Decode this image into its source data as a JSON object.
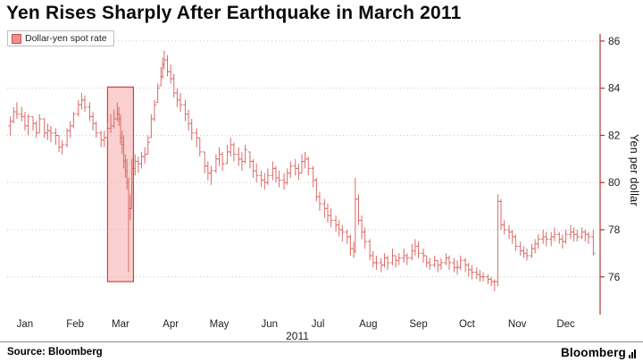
{
  "title": "Yen Rises Sharply After Earthquake in March 2011",
  "legend": {
    "label": "Dollar-yen spot rate"
  },
  "footer": {
    "source": "Source:  Bloomberg",
    "brand": "Bloomberg"
  },
  "colors": {
    "bar": "#d96a66",
    "axis": "#a93a2e",
    "grid": "#c9c9c9",
    "tick_label": "#222222",
    "month_label": "#222222",
    "highlight_fill": "rgba(243,150,150,0.45)",
    "highlight_border": "#d0423c"
  },
  "chart_data": {
    "type": "ohlc-bar",
    "title": "Yen Rises Sharply After Earthquake in March 2011",
    "series_name": "Dollar-yen spot rate",
    "xlabel": "2011",
    "ylabel": "Yen per dollar",
    "x_unit": "day-of-year-2011",
    "month_labels": [
      "Jan",
      "Feb",
      "Mar",
      "Apr",
      "May",
      "Jun",
      "Jul",
      "Aug",
      "Sep",
      "Oct",
      "Nov",
      "Dec"
    ],
    "y_ticks": [
      76,
      78,
      80,
      82,
      84,
      86
    ],
    "ylim": [
      74.4,
      86.3
    ],
    "grid": "dotted-horizontal",
    "legend_position": "top-left",
    "axis_position": "right",
    "highlight": {
      "day_start": 63,
      "day_end": 79,
      "y_top": 84.05,
      "y_bottom": 75.8
    },
    "points": [
      [
        3,
        82.8,
        82.0,
        82.6
      ],
      [
        5,
        83.2,
        82.5,
        83.0
      ],
      [
        7,
        83.4,
        82.7,
        82.9
      ],
      [
        10,
        83.2,
        82.6,
        82.8
      ],
      [
        12,
        83.0,
        82.2,
        82.4
      ],
      [
        14,
        82.9,
        82.0,
        82.8
      ],
      [
        17,
        82.8,
        82.2,
        82.5
      ],
      [
        19,
        82.6,
        81.9,
        82.1
      ],
      [
        21,
        82.9,
        82.1,
        82.7
      ],
      [
        24,
        82.7,
        81.9,
        82.1
      ],
      [
        26,
        82.5,
        81.8,
        82.2
      ],
      [
        28,
        82.4,
        81.7,
        82.1
      ],
      [
        31,
        82.3,
        81.6,
        82.0
      ],
      [
        33,
        82.0,
        81.3,
        81.5
      ],
      [
        35,
        81.8,
        81.2,
        81.6
      ],
      [
        38,
        82.3,
        81.5,
        82.2
      ],
      [
        40,
        82.6,
        81.9,
        82.4
      ],
      [
        42,
        83.0,
        82.3,
        82.9
      ],
      [
        45,
        83.5,
        82.8,
        83.3
      ],
      [
        47,
        83.8,
        83.1,
        83.5
      ],
      [
        49,
        83.7,
        83.0,
        83.2
      ],
      [
        52,
        83.4,
        82.6,
        82.8
      ],
      [
        54,
        83.0,
        82.2,
        82.5
      ],
      [
        56,
        82.6,
        81.9,
        82.1
      ],
      [
        59,
        82.2,
        81.5,
        81.8
      ],
      [
        61,
        82.2,
        81.5,
        81.9
      ],
      [
        63,
        82.5,
        81.8,
        82.3
      ],
      [
        65,
        82.9,
        82.1,
        82.4
      ],
      [
        67,
        83.1,
        82.3,
        82.7
      ],
      [
        69,
        83.4,
        82.6,
        82.9
      ],
      [
        70,
        83.2,
        82.4,
        82.7
      ],
      [
        71,
        82.9,
        81.6,
        81.9
      ],
      [
        72,
        82.2,
        81.2,
        81.6
      ],
      [
        73,
        82.0,
        80.6,
        80.9
      ],
      [
        74,
        81.2,
        80.2,
        80.5
      ],
      [
        75,
        81.0,
        79.7,
        80.0
      ],
      [
        76,
        80.2,
        76.2,
        78.9
      ],
      [
        77,
        79.5,
        78.4,
        78.9
      ],
      [
        78,
        81.0,
        78.9,
        80.6
      ],
      [
        80,
        81.2,
        80.3,
        80.9
      ],
      [
        82,
        81.1,
        80.4,
        80.8
      ],
      [
        84,
        81.3,
        80.6,
        81.1
      ],
      [
        86,
        81.5,
        80.8,
        81.2
      ],
      [
        88,
        82.0,
        81.2,
        81.7
      ],
      [
        90,
        82.9,
        81.9,
        82.7
      ],
      [
        92,
        83.5,
        82.6,
        83.3
      ],
      [
        94,
        84.2,
        83.4,
        84.0
      ],
      [
        96,
        84.9,
        84.1,
        84.5
      ],
      [
        97,
        85.3,
        84.4,
        85.0
      ],
      [
        98,
        85.6,
        84.8,
        85.2
      ],
      [
        100,
        85.4,
        84.5,
        84.7
      ],
      [
        102,
        85.0,
        84.2,
        84.4
      ],
      [
        104,
        84.6,
        83.6,
        83.8
      ],
      [
        106,
        84.0,
        83.2,
        83.5
      ],
      [
        108,
        83.8,
        83.0,
        83.3
      ],
      [
        111,
        83.5,
        82.6,
        82.9
      ],
      [
        113,
        83.1,
        82.2,
        82.5
      ],
      [
        115,
        82.7,
        81.8,
        82.1
      ],
      [
        118,
        82.3,
        81.5,
        81.9
      ],
      [
        120,
        81.9,
        81.1,
        81.3
      ],
      [
        123,
        81.3,
        80.4,
        80.7
      ],
      [
        125,
        80.9,
        80.1,
        80.4
      ],
      [
        127,
        80.7,
        79.9,
        80.5
      ],
      [
        130,
        81.2,
        80.4,
        81.0
      ],
      [
        132,
        81.5,
        80.7,
        81.2
      ],
      [
        134,
        81.3,
        80.5,
        80.8
      ],
      [
        137,
        81.6,
        80.8,
        81.3
      ],
      [
        139,
        81.9,
        81.1,
        81.6
      ],
      [
        141,
        81.7,
        80.9,
        81.2
      ],
      [
        144,
        81.5,
        80.7,
        81.0
      ],
      [
        146,
        81.3,
        80.5,
        80.9
      ],
      [
        148,
        81.6,
        80.8,
        81.4
      ],
      [
        151,
        81.3,
        80.6,
        80.9
      ],
      [
        153,
        81.0,
        80.2,
        80.5
      ],
      [
        155,
        80.8,
        80.0,
        80.3
      ],
      [
        158,
        80.5,
        79.8,
        80.1
      ],
      [
        160,
        80.4,
        79.7,
        80.0
      ],
      [
        162,
        80.6,
        79.9,
        80.3
      ],
      [
        165,
        80.9,
        80.1,
        80.6
      ],
      [
        167,
        80.7,
        80.0,
        80.2
      ],
      [
        169,
        80.5,
        79.8,
        80.1
      ],
      [
        172,
        80.4,
        79.7,
        80.0
      ],
      [
        174,
        80.6,
        79.9,
        80.4
      ],
      [
        176,
        80.9,
        80.2,
        80.7
      ],
      [
        179,
        81.0,
        80.3,
        80.6
      ],
      [
        181,
        80.8,
        80.1,
        80.4
      ],
      [
        183,
        81.2,
        80.4,
        80.9
      ],
      [
        185,
        81.3,
        80.6,
        81.0
      ],
      [
        187,
        81.1,
        80.3,
        80.6
      ],
      [
        190,
        80.7,
        79.8,
        80.1
      ],
      [
        192,
        80.2,
        79.2,
        79.4
      ],
      [
        194,
        79.6,
        78.8,
        79.1
      ],
      [
        197,
        79.3,
        78.5,
        78.9
      ],
      [
        199,
        79.1,
        78.3,
        78.6
      ],
      [
        201,
        78.9,
        78.1,
        78.4
      ],
      [
        204,
        78.6,
        77.9,
        78.2
      ],
      [
        206,
        78.4,
        77.7,
        78.0
      ],
      [
        208,
        78.2,
        77.5,
        77.9
      ],
      [
        211,
        78.0,
        77.4,
        77.7
      ],
      [
        213,
        77.8,
        76.9,
        77.2
      ],
      [
        215,
        77.5,
        76.8,
        77.1
      ],
      [
        216,
        80.2,
        77.0,
        79.3
      ],
      [
        218,
        79.5,
        78.2,
        78.4
      ],
      [
        220,
        78.6,
        77.6,
        77.9
      ],
      [
        222,
        78.1,
        77.2,
        77.5
      ],
      [
        225,
        77.6,
        76.7,
        76.9
      ],
      [
        227,
        77.1,
        76.4,
        76.6
      ],
      [
        229,
        76.9,
        76.3,
        76.6
      ],
      [
        232,
        76.8,
        76.2,
        76.5
      ],
      [
        234,
        77.0,
        76.4,
        76.8
      ],
      [
        236,
        76.9,
        76.3,
        76.6
      ],
      [
        239,
        77.2,
        76.5,
        76.9
      ],
      [
        241,
        76.9,
        76.4,
        76.7
      ],
      [
        243,
        77.0,
        76.5,
        76.8
      ],
      [
        246,
        77.2,
        76.6,
        76.9
      ],
      [
        248,
        77.0,
        76.5,
        76.8
      ],
      [
        251,
        77.4,
        76.7,
        77.1
      ],
      [
        253,
        77.6,
        76.9,
        77.3
      ],
      [
        255,
        77.5,
        76.8,
        77.0
      ],
      [
        258,
        77.2,
        76.6,
        76.9
      ],
      [
        260,
        76.9,
        76.4,
        76.6
      ],
      [
        262,
        76.8,
        76.3,
        76.5
      ],
      [
        265,
        76.9,
        76.4,
        76.7
      ],
      [
        267,
        76.7,
        76.2,
        76.5
      ],
      [
        269,
        76.8,
        76.3,
        76.6
      ],
      [
        272,
        77.0,
        76.5,
        76.8
      ],
      [
        274,
        76.9,
        76.3,
        76.6
      ],
      [
        277,
        76.8,
        76.2,
        76.4
      ],
      [
        279,
        76.7,
        76.1,
        76.4
      ],
      [
        281,
        76.9,
        76.3,
        76.7
      ],
      [
        284,
        76.8,
        76.2,
        76.5
      ],
      [
        286,
        76.6,
        76.0,
        76.3
      ],
      [
        288,
        76.5,
        75.9,
        76.2
      ],
      [
        291,
        76.4,
        75.9,
        76.1
      ],
      [
        293,
        76.3,
        75.8,
        76.0
      ],
      [
        295,
        76.2,
        75.8,
        76.0
      ],
      [
        298,
        76.1,
        75.7,
        75.9
      ],
      [
        300,
        76.0,
        75.6,
        75.8
      ],
      [
        302,
        75.9,
        75.4,
        75.8
      ],
      [
        304,
        79.5,
        75.6,
        79.2
      ],
      [
        306,
        79.3,
        78.0,
        78.2
      ],
      [
        308,
        78.4,
        77.8,
        78.0
      ],
      [
        311,
        78.2,
        77.6,
        77.9
      ],
      [
        313,
        78.0,
        77.4,
        77.7
      ],
      [
        315,
        77.8,
        77.1,
        77.3
      ],
      [
        318,
        77.5,
        76.9,
        77.1
      ],
      [
        320,
        77.3,
        76.8,
        77.0
      ],
      [
        322,
        77.2,
        76.7,
        76.9
      ],
      [
        325,
        77.4,
        76.8,
        77.2
      ],
      [
        327,
        77.6,
        77.0,
        77.4
      ],
      [
        329,
        77.8,
        77.2,
        77.6
      ],
      [
        332,
        78.0,
        77.4,
        77.7
      ],
      [
        334,
        77.9,
        77.3,
        77.6
      ],
      [
        337,
        77.9,
        77.3,
        77.7
      ],
      [
        339,
        78.1,
        77.5,
        77.8
      ],
      [
        342,
        77.9,
        77.4,
        77.6
      ],
      [
        344,
        77.8,
        77.2,
        77.5
      ],
      [
        346,
        78.0,
        77.4,
        77.8
      ],
      [
        349,
        78.2,
        77.6,
        77.9
      ],
      [
        351,
        78.1,
        77.5,
        77.8
      ],
      [
        353,
        78.0,
        77.5,
        77.7
      ],
      [
        356,
        78.1,
        77.6,
        77.9
      ],
      [
        358,
        78.0,
        77.5,
        77.8
      ],
      [
        360,
        77.9,
        77.4,
        77.7
      ],
      [
        363,
        78.0,
        76.9,
        77.0
      ]
    ]
  }
}
